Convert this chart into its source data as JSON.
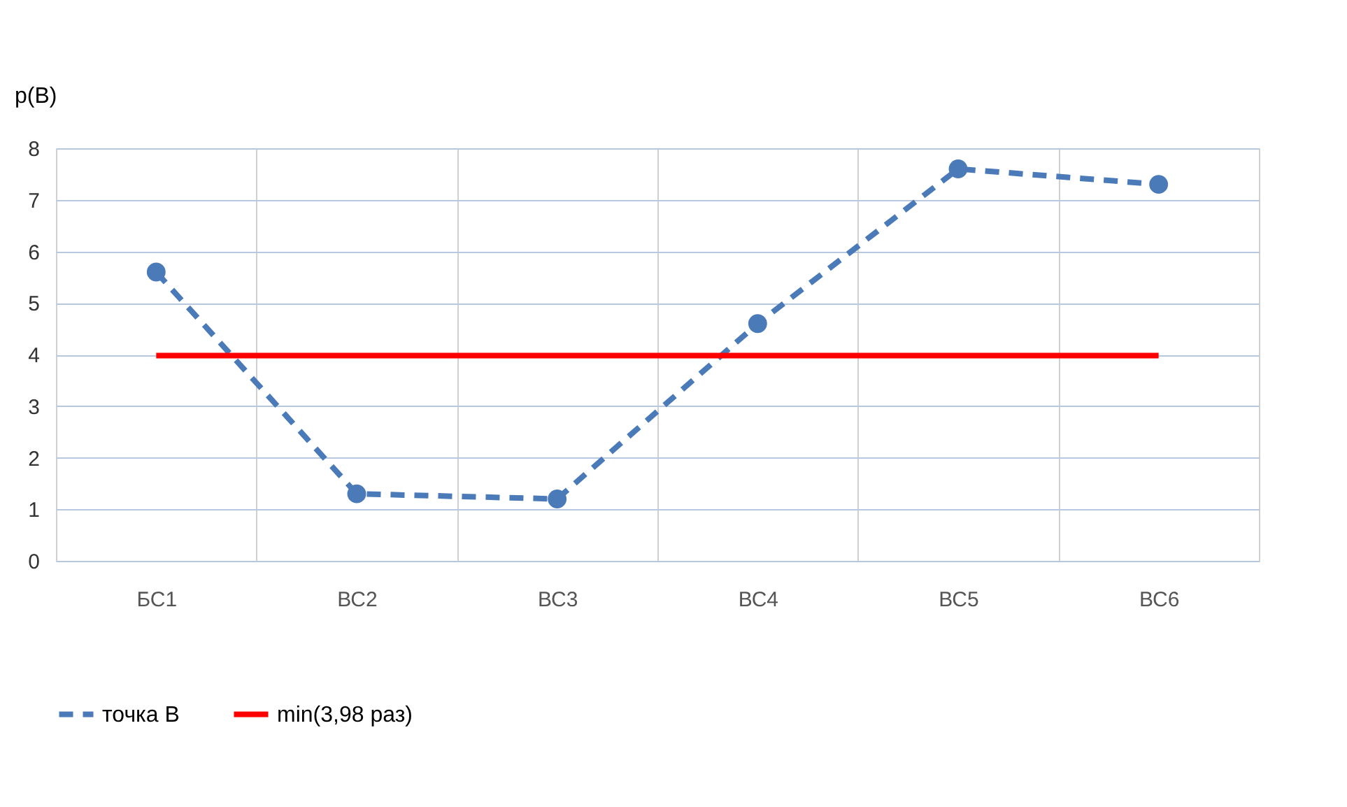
{
  "chart_data": {
    "type": "line",
    "ylabel": "p(B)",
    "categories": [
      "БС1",
      "ВС2",
      "ВС3",
      "ВС4",
      "ВС5",
      "ВС6"
    ],
    "series": [
      {
        "name": "точка В",
        "color": "#4a7ab8",
        "values": [
          5.6,
          1.3,
          1.2,
          4.6,
          7.6,
          7.3
        ],
        "marker": "circle",
        "line_style": "dashed"
      },
      {
        "name": "min(3,98 раз)",
        "color": "#ff0000",
        "values": [
          3.98,
          3.98,
          3.98,
          3.98,
          3.98,
          3.98
        ],
        "marker": "none",
        "line_style": "solid"
      }
    ],
    "ylim": [
      0,
      8
    ],
    "yticks": [
      0,
      1,
      2,
      3,
      4,
      5,
      6,
      7,
      8
    ],
    "grid": true,
    "legend": "bottom"
  }
}
